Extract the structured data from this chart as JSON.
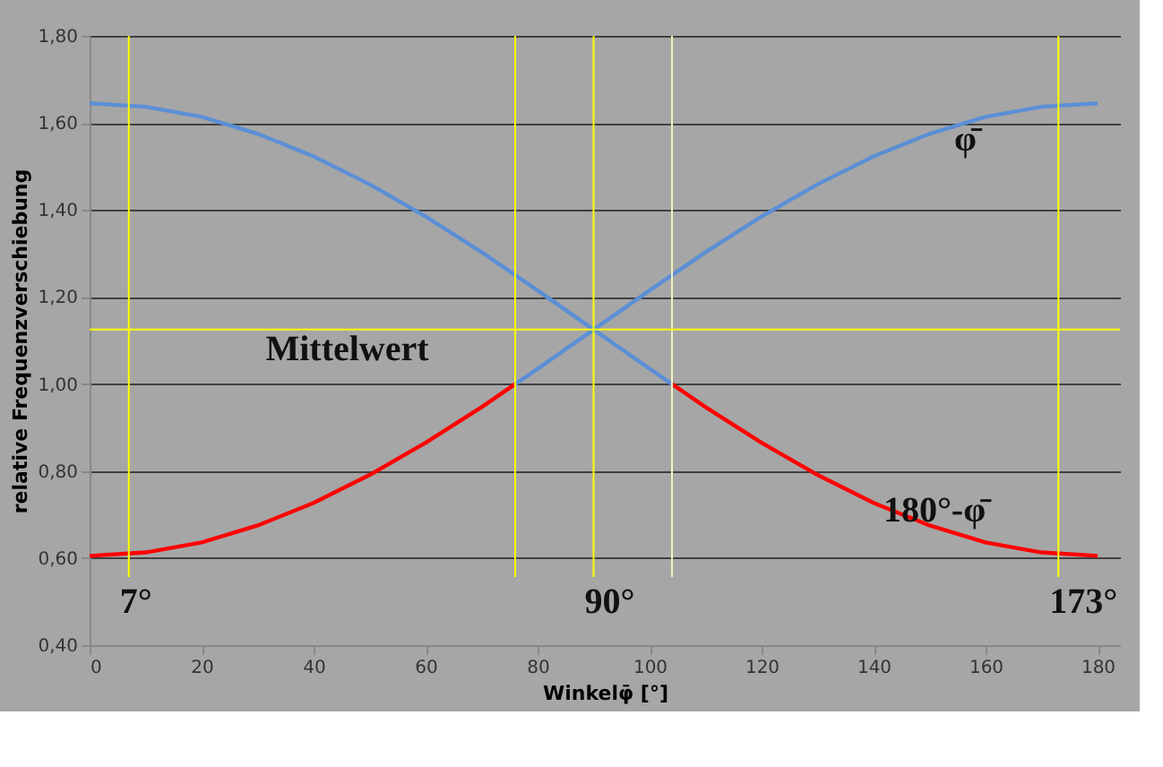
{
  "chart_data": {
    "type": "line",
    "xlabel": "Winkelφ̄ [°]",
    "ylabel": "relative Frequenzverschiebung",
    "xlim": [
      0,
      184
    ],
    "xticks": [
      0,
      20,
      40,
      60,
      80,
      100,
      120,
      140,
      160,
      180
    ],
    "ylim": [
      0.4,
      1.8
    ],
    "yticks": [
      {
        "value": 0.4,
        "label": "0,40"
      },
      {
        "value": 0.6,
        "label": "0,60"
      },
      {
        "value": 0.8,
        "label": "0,80"
      },
      {
        "value": 1.0,
        "label": "1,00"
      },
      {
        "value": 1.2,
        "label": "1,20"
      },
      {
        "value": 1.4,
        "label": "1,40"
      },
      {
        "value": 1.6,
        "label": "1,60"
      },
      {
        "value": 1.8,
        "label": "1,80"
      }
    ],
    "grid": "y",
    "marker": "none",
    "line_style": "solid",
    "series": [
      {
        "color": "#ff0000",
        "x": [
          0,
          10,
          20,
          30,
          40,
          50,
          60,
          70,
          76
        ],
        "values": [
          0.605,
          0.613,
          0.636,
          0.675,
          0.727,
          0.791,
          0.865,
          0.947,
          1.0
        ]
      },
      {
        "color": "#ff0000",
        "x": [
          104,
          110,
          120,
          130,
          140,
          150,
          160,
          170,
          180
        ],
        "values": [
          1.0,
          0.947,
          0.865,
          0.791,
          0.727,
          0.675,
          0.636,
          0.613,
          0.605
        ]
      },
      {
        "color": "#5b8fd6",
        "x": [
          0,
          10,
          20,
          30,
          40,
          50,
          60,
          70,
          80,
          90,
          100,
          104
        ],
        "values": [
          1.645,
          1.637,
          1.614,
          1.575,
          1.523,
          1.459,
          1.385,
          1.303,
          1.215,
          1.125,
          1.035,
          1.0
        ]
      },
      {
        "color": "#5b8fd6",
        "x": [
          76,
          80,
          90,
          100,
          110,
          120,
          130,
          140,
          150,
          160,
          170,
          180
        ],
        "values": [
          1.0,
          1.035,
          1.125,
          1.215,
          1.303,
          1.385,
          1.459,
          1.523,
          1.575,
          1.614,
          1.637,
          1.645
        ]
      }
    ],
    "ref_lines": [
      {
        "axis": "x",
        "value": 7,
        "label": "7°",
        "color": "#ffff00"
      },
      {
        "axis": "x",
        "value": 76,
        "label": null,
        "color": "#ffff00"
      },
      {
        "axis": "x",
        "value": 90,
        "label": "90°",
        "color": "#ffff00"
      },
      {
        "axis": "x",
        "value": 104,
        "label": null,
        "color": "#f2f2c0"
      },
      {
        "axis": "x",
        "value": 173,
        "label": "173°",
        "color": "#ffff00"
      },
      {
        "axis": "y",
        "value": 1.125,
        "label": null,
        "color": "#ffff00"
      }
    ],
    "annotations": [
      "Mittelwert",
      "φ̄",
      "180°-φ̄"
    ]
  }
}
